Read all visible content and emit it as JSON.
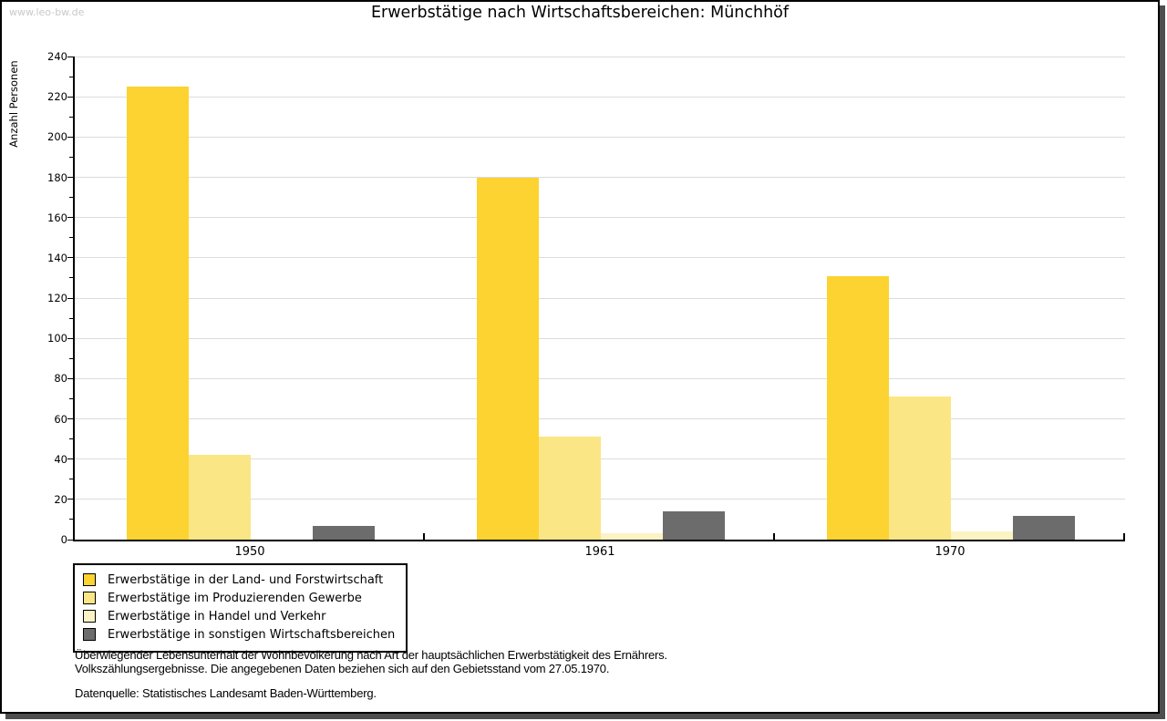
{
  "watermark": "www.leo-bw.de",
  "chart_data": {
    "type": "bar",
    "title": "Erwerbstätige nach Wirtschaftsbereichen: Münchhöf",
    "ylabel": "Anzahl Personen",
    "xlabel": "",
    "categories": [
      "1950",
      "1961",
      "1970"
    ],
    "series": [
      {
        "name": "Erwerbstätige in der Land- und Forstwirtschaft",
        "key": "land-und-forstwirtschaft",
        "color": "#fcd330",
        "values": [
          225,
          180,
          131
        ]
      },
      {
        "name": "Erwerbstätige im Produzierenden Gewerbe",
        "key": "produzierendes-gewerbe",
        "color": "#fbe685",
        "values": [
          42,
          51,
          71
        ]
      },
      {
        "name": "Erwerbstätige in Handel und Verkehr",
        "key": "handel-und-verkehr",
        "color": "#fbf3c4",
        "values": [
          0,
          3,
          4
        ]
      },
      {
        "name": "Erwerbstätige in sonstigen Wirtschaftsbereichen",
        "key": "sonstige-wirtschaftsbereiche",
        "color": "#6c6c6c",
        "values": [
          7,
          14,
          12
        ]
      }
    ],
    "ylim": [
      0,
      240
    ],
    "ytick_step": 20,
    "ytick_minor_step": 10,
    "grid": true,
    "legend_position": "bottom-left",
    "axis_color": "#000000",
    "gridline_color": "#dcdcdc"
  },
  "footer": {
    "notes": [
      "Überwiegender Lebensunterhalt der Wohnbevölkerung nach Art der hauptsächlichen Erwerbstätigkeit des Ernährers.",
      "Volkszählungsergebnisse. Die angegebenen Daten beziehen sich auf den Gebietsstand vom 27.05.1970."
    ],
    "source": "Datenquelle: Statistisches Landesamt Baden-Württemberg."
  }
}
